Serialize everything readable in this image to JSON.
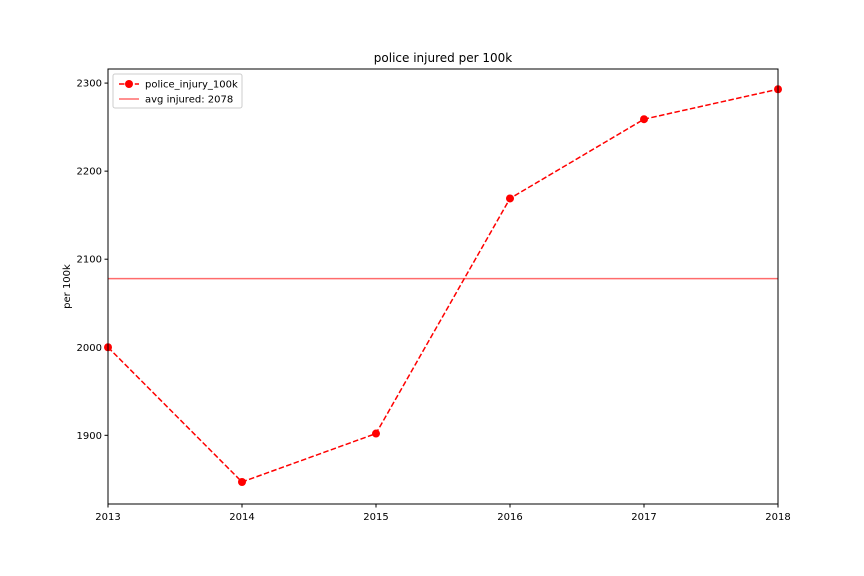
{
  "chart_data": {
    "type": "line",
    "title": "police injured per 100k",
    "xlabel": "",
    "ylabel": "per 100k",
    "x": [
      2013,
      2014,
      2015,
      2016,
      2017,
      2018
    ],
    "xlim": [
      2013,
      2018
    ],
    "ylim": [
      1822,
      2316
    ],
    "xticks": [
      "2013",
      "2014",
      "2015",
      "2016",
      "2017",
      "2018"
    ],
    "yticks": [
      1900,
      2000,
      2100,
      2200,
      2300
    ],
    "grid": false,
    "legend_position": "top-left",
    "series": [
      {
        "name": "police_injury_100k",
        "values": [
          2000,
          1847,
          1902,
          2169,
          2259,
          2293
        ],
        "color": "#ff0000",
        "line_style": "dashed",
        "marker": "circle"
      }
    ],
    "reference_lines": [
      {
        "name": "avg injured: 2078",
        "value": 2078,
        "color": "#ff6b6b",
        "line_style": "solid"
      }
    ]
  }
}
